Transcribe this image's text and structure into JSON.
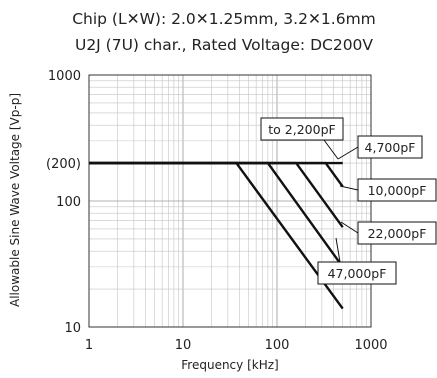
{
  "chart_data": {
    "type": "line",
    "title_lines": [
      "Chip (L✕W): 2.0✕1.25mm, 3.2✕1.6mm",
      "U2J (7U) char., Rated Voltage: DC200V"
    ],
    "xlabel": "Frequency [kHz]",
    "ylabel": "Allowable Sine Wave Voltage [Vp-p]",
    "x_scale": "log",
    "y_scale": "log",
    "xlim": [
      1,
      1000
    ],
    "ylim": [
      10,
      1000
    ],
    "grid": true,
    "x_ticks": [
      {
        "value": 1,
        "label": "1"
      },
      {
        "value": 10,
        "label": "10"
      },
      {
        "value": 100,
        "label": "100"
      },
      {
        "value": 1000,
        "label": "1000"
      }
    ],
    "y_ticks": [
      {
        "value": 10,
        "label": "10"
      },
      {
        "value": 100,
        "label": "100"
      },
      {
        "value": 200,
        "label": "(200)"
      },
      {
        "value": 1000,
        "label": "1000"
      }
    ],
    "series": [
      {
        "name": "to 2,200pF",
        "points": [
          [
            1,
            200
          ],
          [
            500,
            200
          ]
        ]
      },
      {
        "name": "4,700pF",
        "points": [
          [
            1,
            200
          ],
          [
            330,
            200
          ],
          [
            500,
            130
          ]
        ]
      },
      {
        "name": "10,000pF",
        "points": [
          [
            1,
            200
          ],
          [
            160,
            200
          ],
          [
            500,
            62
          ]
        ]
      },
      {
        "name": "22,000pF",
        "points": [
          [
            1,
            200
          ],
          [
            80,
            200
          ],
          [
            500,
            30
          ]
        ]
      },
      {
        "name": "47,000pF",
        "points": [
          [
            1,
            200
          ],
          [
            37,
            200
          ],
          [
            500,
            14
          ]
        ]
      }
    ]
  }
}
